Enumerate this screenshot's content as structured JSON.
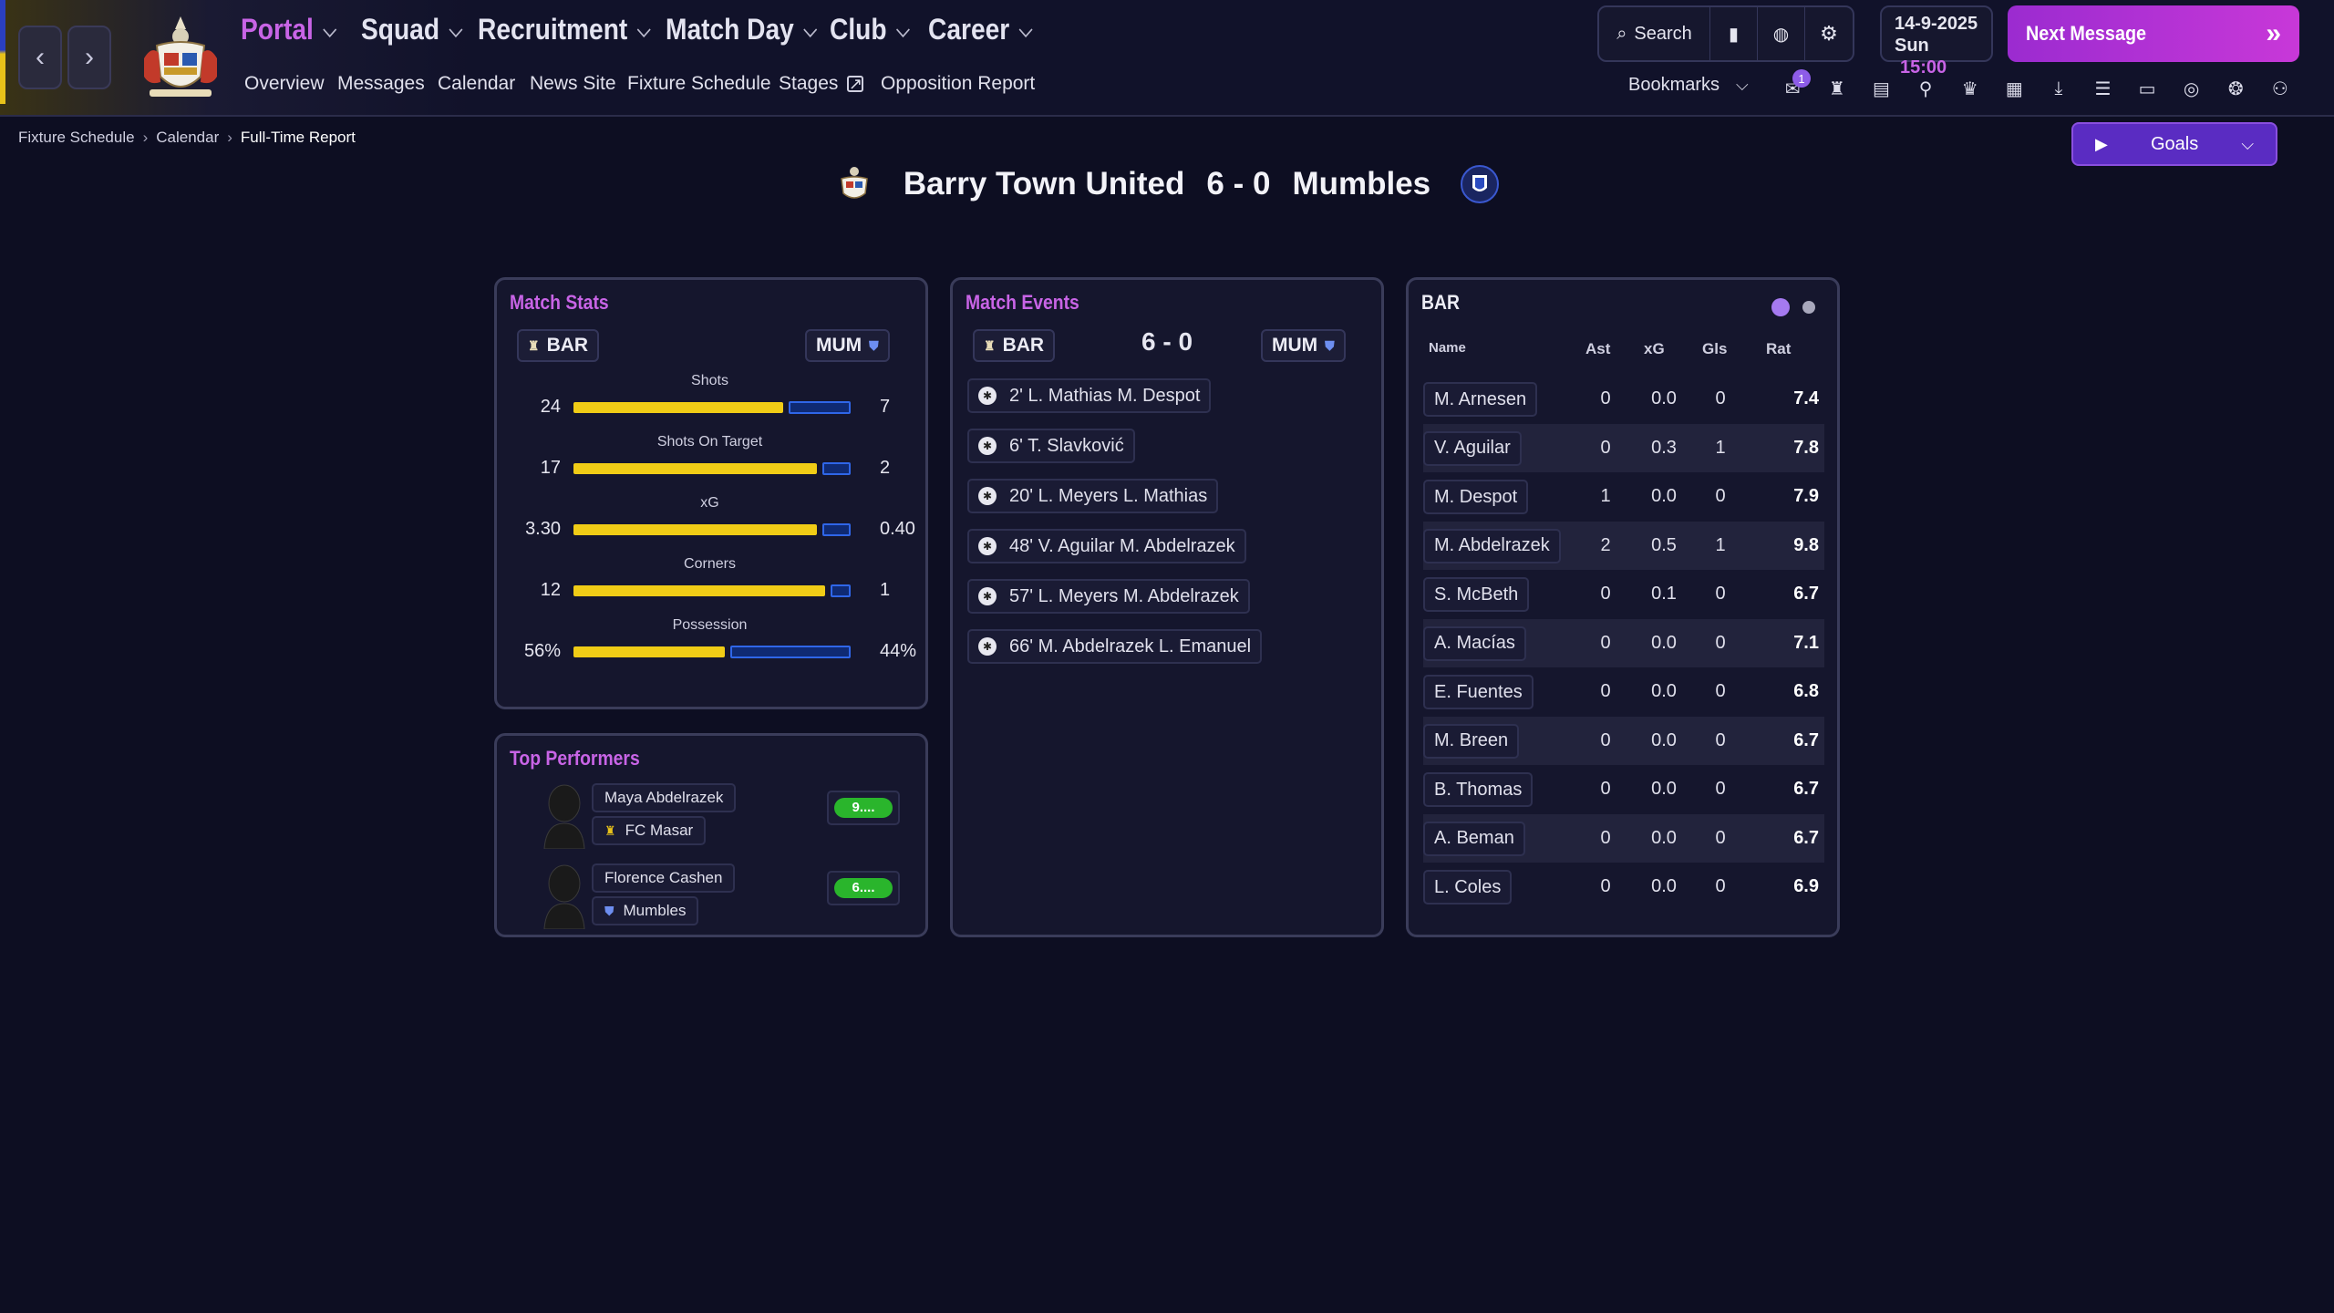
{
  "nav": {
    "menus": [
      {
        "label": "Portal",
        "active": true
      },
      {
        "label": "Squad"
      },
      {
        "label": "Recruitment"
      },
      {
        "label": "Match Day"
      },
      {
        "label": "Club"
      },
      {
        "label": "Career"
      }
    ],
    "submenu": [
      "Overview",
      "Messages",
      "Calendar",
      "News Site",
      "Fixture Schedule",
      "Stages",
      "Opposition Report"
    ],
    "search_label": "Search",
    "date": "14-9-2025",
    "day": "Sun",
    "time": "15:00",
    "next_message": "Next Message",
    "bookmarks": "Bookmarks",
    "notification_count": "1"
  },
  "breadcrumb": [
    "Fixture Schedule",
    "Calendar",
    "Full-Time Report"
  ],
  "goals_button": "Goals",
  "match": {
    "home": "Barry Town United",
    "away": "Mumbles",
    "score": "6 - 0",
    "home_short": "BAR",
    "away_short": "MUM"
  },
  "colors": {
    "accent": "#c864e6",
    "home_bar": "#f0cc16",
    "away_bar": "#2f66e8",
    "rating": "#2ab52c"
  },
  "match_stats": {
    "title": "Match Stats",
    "rows": [
      {
        "label": "Shots",
        "home": "24",
        "away": "7",
        "home_share": 0.77
      },
      {
        "label": "Shots On Target",
        "home": "17",
        "away": "2",
        "home_share": 0.89
      },
      {
        "label": "xG",
        "home": "3.30",
        "away": "0.40",
        "home_share": 0.89
      },
      {
        "label": "Corners",
        "home": "12",
        "away": "1",
        "home_share": 0.92
      },
      {
        "label": "Possession",
        "home": "56%",
        "away": "44%",
        "home_share": 0.56
      }
    ]
  },
  "match_events": {
    "title": "Match Events",
    "score": "6 - 0",
    "events": [
      "2' L. Mathias M. Despot",
      "6' T. Slavković",
      "20' L. Meyers L. Mathias",
      "48' V. Aguilar M. Abdelrazek",
      "57' L. Meyers M. Abdelrazek",
      "66' M. Abdelrazek L. Emanuel"
    ]
  },
  "top_performers": {
    "title": "Top Performers",
    "players": [
      {
        "name": "Maya Abdelrazek",
        "club": "FC Masar",
        "rating": "9...."
      },
      {
        "name": "Florence Cashen",
        "club": "Mumbles",
        "rating": "6...."
      }
    ]
  },
  "player_table": {
    "title": "BAR",
    "headers": [
      "Name",
      "Ast",
      "xG",
      "Gls",
      "Rat"
    ],
    "rows": [
      {
        "name": "M. Arnesen",
        "ast": "0",
        "xg": "0.0",
        "gls": "0",
        "rat": "7.4"
      },
      {
        "name": "V. Aguilar",
        "ast": "0",
        "xg": "0.3",
        "gls": "1",
        "rat": "7.8"
      },
      {
        "name": "M. Despot",
        "ast": "1",
        "xg": "0.0",
        "gls": "0",
        "rat": "7.9"
      },
      {
        "name": "M. Abdelrazek",
        "ast": "2",
        "xg": "0.5",
        "gls": "1",
        "rat": "9.8"
      },
      {
        "name": "S. McBeth",
        "ast": "0",
        "xg": "0.1",
        "gls": "0",
        "rat": "6.7"
      },
      {
        "name": "A. Macías",
        "ast": "0",
        "xg": "0.0",
        "gls": "0",
        "rat": "7.1"
      },
      {
        "name": "E. Fuentes",
        "ast": "0",
        "xg": "0.0",
        "gls": "0",
        "rat": "6.8"
      },
      {
        "name": "M. Breen",
        "ast": "0",
        "xg": "0.0",
        "gls": "0",
        "rat": "6.7"
      },
      {
        "name": "B. Thomas",
        "ast": "0",
        "xg": "0.0",
        "gls": "0",
        "rat": "6.7"
      },
      {
        "name": "A. Beman",
        "ast": "0",
        "xg": "0.0",
        "gls": "0",
        "rat": "6.7"
      },
      {
        "name": "L. Coles",
        "ast": "0",
        "xg": "0.0",
        "gls": "0",
        "rat": "6.9"
      }
    ]
  }
}
